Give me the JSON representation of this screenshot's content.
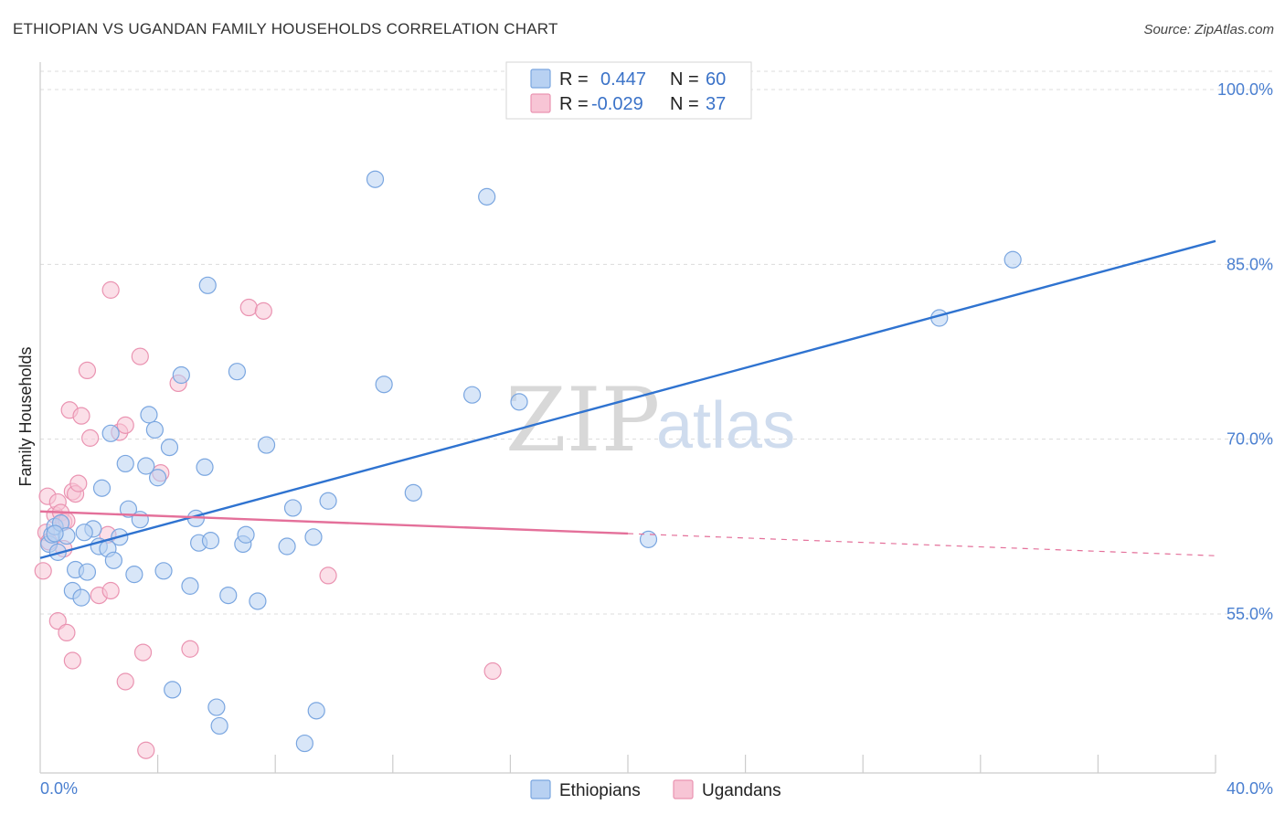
{
  "header": {
    "title": "ETHIOPIAN VS UGANDAN FAMILY HOUSEHOLDS CORRELATION CHART",
    "source": "Source: ZipAtlas.com"
  },
  "watermark": {
    "zip": "ZIP",
    "atlas": "atlas"
  },
  "colors": {
    "blue_fill": "#b8d1f2",
    "blue_stroke": "#7aa6e0",
    "blue_line": "#2f73d0",
    "pink_fill": "#f7c5d5",
    "pink_stroke": "#ea93b1",
    "pink_line": "#e4709a",
    "grid": "#dcdcdc",
    "tick_text": "#4a7fd0"
  },
  "legend": {
    "rows": [
      {
        "r_label": "R =",
        "r_value": "0.447",
        "n_label": "N =",
        "n_value": "60",
        "series": "blue"
      },
      {
        "r_label": "R =",
        "r_value": "-0.029",
        "n_label": "N =",
        "n_value": "37",
        "series": "pink"
      }
    ]
  },
  "chart_data": {
    "type": "scatter",
    "title": "ETHIOPIAN VS UGANDAN FAMILY HOUSEHOLDS CORRELATION CHART",
    "xlabel": "",
    "ylabel": "Family Households",
    "xlim": [
      0,
      40
    ],
    "ylim": [
      41,
      102
    ],
    "x_tick_labels": [
      "0.0%",
      "40.0%"
    ],
    "y_ticks": [
      {
        "value": 100,
        "label": "100.0%"
      },
      {
        "value": 85,
        "label": "85.0%"
      },
      {
        "value": 70,
        "label": "70.0%"
      },
      {
        "value": 55,
        "label": "55.0%"
      }
    ],
    "grid": true,
    "legend_position": "top-center",
    "series": [
      {
        "name": "Ethiopians",
        "color": "blue",
        "r": 0.447,
        "n": 60,
        "trend": {
          "x0": 0,
          "y0": 59.8,
          "x1": 40,
          "y1": 87.0,
          "solid_until": 40
        },
        "points": [
          [
            0.3,
            61.0
          ],
          [
            0.4,
            61.8
          ],
          [
            0.5,
            62.5
          ],
          [
            0.6,
            60.3
          ],
          [
            0.7,
            62.8
          ],
          [
            0.9,
            61.7
          ],
          [
            1.1,
            57.0
          ],
          [
            1.2,
            58.8
          ],
          [
            1.4,
            56.4
          ],
          [
            1.6,
            58.6
          ],
          [
            1.8,
            62.3
          ],
          [
            2.0,
            60.8
          ],
          [
            2.1,
            65.8
          ],
          [
            2.3,
            60.6
          ],
          [
            2.4,
            70.5
          ],
          [
            2.5,
            59.6
          ],
          [
            2.7,
            61.6
          ],
          [
            2.9,
            67.9
          ],
          [
            3.0,
            64.0
          ],
          [
            3.2,
            58.4
          ],
          [
            3.4,
            63.1
          ],
          [
            3.6,
            67.7
          ],
          [
            3.7,
            72.1
          ],
          [
            3.9,
            70.8
          ],
          [
            4.0,
            66.7
          ],
          [
            4.2,
            58.7
          ],
          [
            4.4,
            69.3
          ],
          [
            4.5,
            48.5
          ],
          [
            4.8,
            75.5
          ],
          [
            5.1,
            57.4
          ],
          [
            5.3,
            63.2
          ],
          [
            5.4,
            61.1
          ],
          [
            5.6,
            67.6
          ],
          [
            5.8,
            61.3
          ],
          [
            5.7,
            83.2
          ],
          [
            6.0,
            47.0
          ],
          [
            6.1,
            45.4
          ],
          [
            6.4,
            56.6
          ],
          [
            6.7,
            75.8
          ],
          [
            6.9,
            61.0
          ],
          [
            7.0,
            61.8
          ],
          [
            7.4,
            56.1
          ],
          [
            7.7,
            69.5
          ],
          [
            8.4,
            60.8
          ],
          [
            8.6,
            64.1
          ],
          [
            9.0,
            43.9
          ],
          [
            9.3,
            61.6
          ],
          [
            9.4,
            46.7
          ],
          [
            9.8,
            64.7
          ],
          [
            11.4,
            92.3
          ],
          [
            11.7,
            74.7
          ],
          [
            12.7,
            65.4
          ],
          [
            14.7,
            73.8
          ],
          [
            15.2,
            90.8
          ],
          [
            16.3,
            73.2
          ],
          [
            20.7,
            61.4
          ],
          [
            30.6,
            80.4
          ],
          [
            33.1,
            85.4
          ],
          [
            0.5,
            61.9
          ],
          [
            1.5,
            62.0
          ]
        ]
      },
      {
        "name": "Ugandans",
        "color": "pink",
        "r": -0.029,
        "n": 37,
        "trend": {
          "x0": 0,
          "y0": 63.8,
          "x1": 40,
          "y1": 60.0,
          "solid_until": 20
        },
        "points": [
          [
            0.1,
            58.7
          ],
          [
            0.2,
            62.0
          ],
          [
            0.25,
            65.1
          ],
          [
            0.3,
            61.2
          ],
          [
            0.5,
            63.5
          ],
          [
            0.6,
            64.6
          ],
          [
            0.7,
            63.7
          ],
          [
            0.8,
            62.9
          ],
          [
            0.8,
            60.6
          ],
          [
            0.6,
            54.4
          ],
          [
            0.9,
            53.4
          ],
          [
            1.0,
            72.5
          ],
          [
            1.1,
            65.5
          ],
          [
            1.1,
            51.0
          ],
          [
            1.2,
            65.3
          ],
          [
            1.3,
            66.2
          ],
          [
            1.4,
            72.0
          ],
          [
            1.6,
            75.9
          ],
          [
            1.7,
            70.1
          ],
          [
            2.0,
            56.6
          ],
          [
            2.3,
            61.8
          ],
          [
            2.4,
            82.8
          ],
          [
            2.4,
            57.0
          ],
          [
            2.7,
            70.6
          ],
          [
            2.9,
            71.2
          ],
          [
            2.9,
            49.2
          ],
          [
            3.4,
            77.1
          ],
          [
            3.5,
            51.7
          ],
          [
            3.6,
            43.3
          ],
          [
            4.1,
            67.1
          ],
          [
            4.7,
            74.8
          ],
          [
            5.1,
            52.0
          ],
          [
            7.1,
            81.3
          ],
          [
            7.6,
            81.0
          ],
          [
            9.8,
            58.3
          ],
          [
            15.4,
            50.1
          ],
          [
            0.9,
            63.0
          ]
        ]
      }
    ]
  }
}
